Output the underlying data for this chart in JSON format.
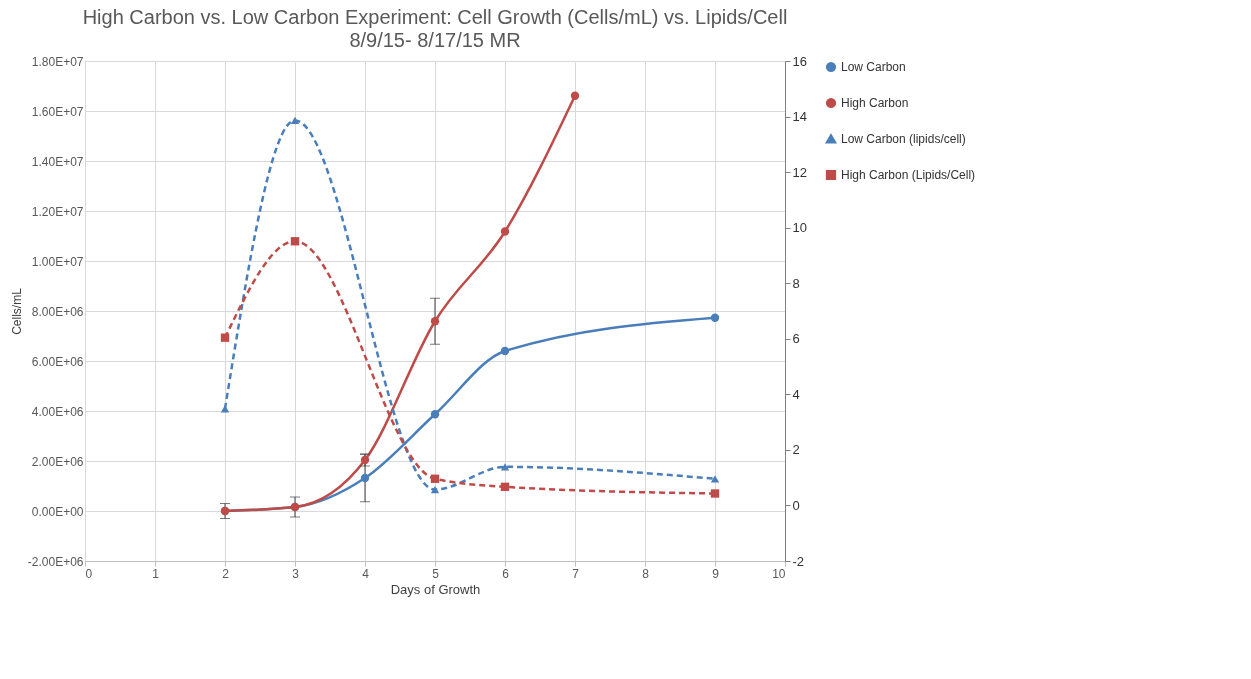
{
  "chart_data": {
    "type": "line",
    "title": "High Carbon vs. Low Carbon Experiment: Cell Growth (Cells/mL) vs. Lipids/Cell",
    "subtitle": "8/9/15- 8/17/15 MR",
    "xlabel": "Days of Growth",
    "ylabel": "Cells/mL",
    "xlim": [
      0,
      10
    ],
    "xticks": [
      0,
      1,
      2,
      3,
      4,
      5,
      6,
      7,
      8,
      9,
      10
    ],
    "ylim": [
      -2000000,
      18000000
    ],
    "yticks": [
      {
        "value": -2000000,
        "label": "-2.00E+06"
      },
      {
        "value": 0,
        "label": "0.00E+00"
      },
      {
        "value": 2000000,
        "label": "2.00E+06"
      },
      {
        "value": 4000000,
        "label": "4.00E+06"
      },
      {
        "value": 6000000,
        "label": "6.00E+06"
      },
      {
        "value": 8000000,
        "label": "8.00E+06"
      },
      {
        "value": 10000000,
        "label": "1.00E+07"
      },
      {
        "value": 12000000,
        "label": "1.20E+07"
      },
      {
        "value": 14000000,
        "label": "1.40E+07"
      },
      {
        "value": 16000000,
        "label": "1.60E+07"
      },
      {
        "value": 18000000,
        "label": "1.80E+07"
      }
    ],
    "y2lim": [
      -2,
      16
    ],
    "y2ticks": [
      -2,
      0,
      2,
      4,
      6,
      8,
      10,
      12,
      14,
      16
    ],
    "grid": true,
    "legend": "right",
    "series": [
      {
        "name": "Low Carbon",
        "color": "#4a7ebb",
        "marker": "circle",
        "line_style": "solid",
        "x": [
          2,
          3,
          4,
          5,
          6,
          9
        ],
        "values": [
          0,
          160000,
          1320000,
          3870000,
          6400000,
          7730000
        ],
        "errors": [
          300000,
          400000,
          950000,
          null,
          null,
          null
        ]
      },
      {
        "name": "High Carbon",
        "color": "#be4b48",
        "marker": "circle",
        "line_style": "solid",
        "x": [
          2,
          3,
          4,
          5,
          6,
          7
        ],
        "values": [
          0,
          160000,
          2040000,
          7590000,
          11180000,
          16610000
        ],
        "errors": [
          null,
          null,
          240000,
          920000,
          null,
          null
        ]
      },
      {
        "name": "Low Carbon (lipids/cell)",
        "color": "#4a7ebb",
        "marker": "triangle",
        "line_style": "dashed",
        "axis": "y2",
        "x": [
          2,
          3,
          5,
          6,
          9
        ],
        "values": [
          3.48,
          13.86,
          0.57,
          1.39,
          0.96
        ]
      },
      {
        "name": "High Carbon (Lipids/Cell)",
        "color": "#be4b48",
        "marker": "square",
        "line_style": "dashed",
        "axis": "y2",
        "x": [
          2,
          3,
          5,
          6,
          9
        ],
        "values": [
          6.04,
          9.51,
          0.96,
          0.67,
          0.43
        ]
      }
    ]
  }
}
